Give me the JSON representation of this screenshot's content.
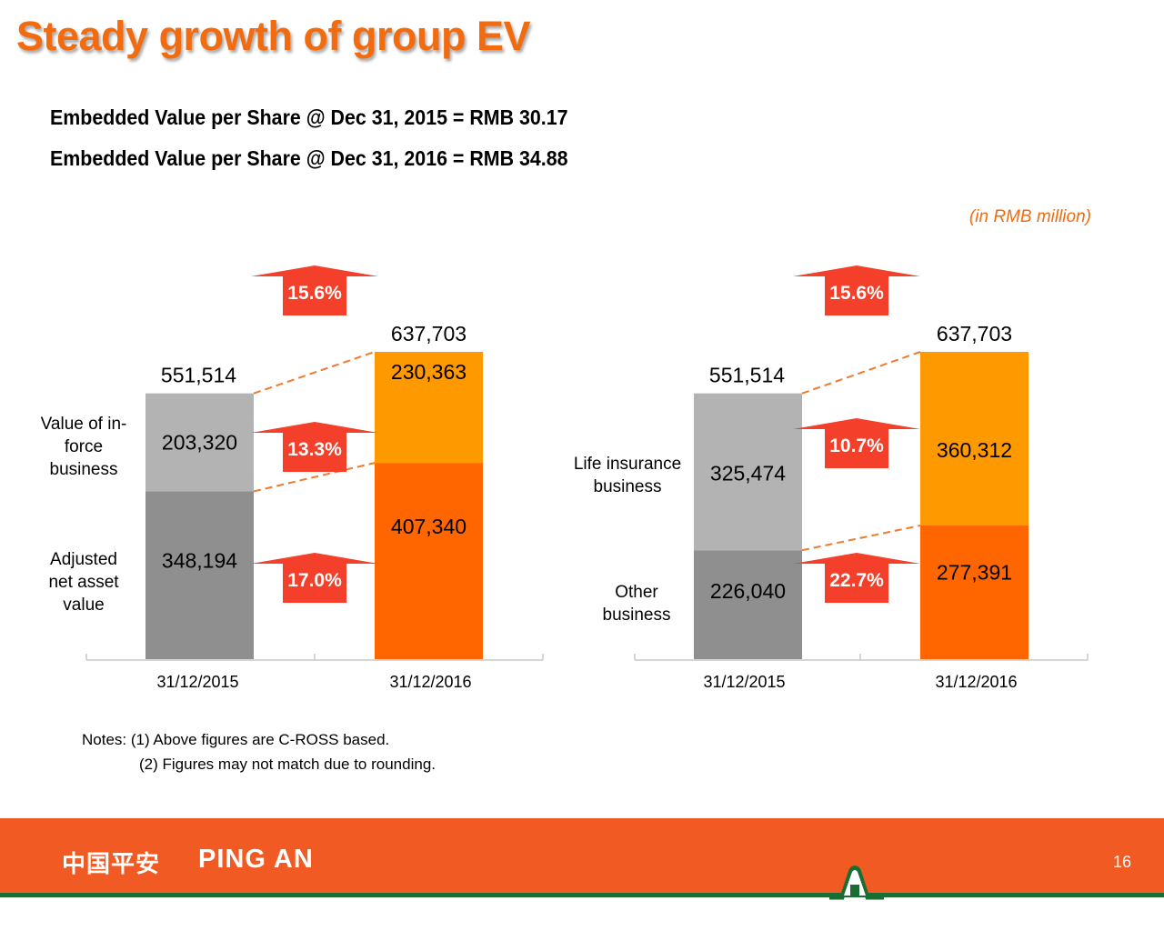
{
  "slide": {
    "title": "Steady growth of group EV",
    "ev_per_share_2015": "Embedded Value per Share @ Dec 31, 2015 = RMB 30.17",
    "ev_per_share_2016": "Embedded Value per Share @ Dec 31, 2016 = RMB 34.88",
    "unit_note": "(in RMB million)",
    "notes": [
      "Notes: (1) Above figures are C-ROSS based.",
      "(2) Figures may not match due to rounding."
    ],
    "page_number": "16"
  },
  "footer": {
    "logo_cn": "中国平安",
    "logo_en": "PING AN"
  },
  "colors": {
    "title_orange": "#f26b0f",
    "bar_2015_top": "#b3b3b3",
    "bar_2015_bottom": "#8f8f8f",
    "bar_2016_top": "#ff9900",
    "bar_2016_bottom": "#ff6600",
    "growth_arrow": "#f4402a",
    "connector": "#f07a2e",
    "footer_bg": "#f15a22",
    "footer_line": "#1a6e34"
  },
  "chart_data": [
    {
      "type": "bar",
      "stacked": true,
      "title": "EV by component",
      "categories": [
        "31/12/2015",
        "31/12/2016"
      ],
      "series": [
        {
          "name": "Adjusted net asset value",
          "values": [
            348194,
            407340
          ]
        },
        {
          "name": "Value of in-force business",
          "values": [
            203320,
            230363
          ]
        }
      ],
      "totals": [
        551514,
        637703
      ],
      "growth": {
        "total": "15.6%",
        "Value of in-force business": "13.3%",
        "Adjusted net asset value": "17.0%"
      },
      "series_labels": [
        {
          "name": "Adjusted net asset value",
          "text": "Adjusted net asset value",
          "lines": [
            "Adjusted",
            "net asset",
            "value"
          ]
        },
        {
          "name": "Value of in-force business",
          "text": "Value of in-force business",
          "lines": [
            "Value of in-",
            "force",
            "business"
          ]
        }
      ],
      "ylim": [
        0,
        700000
      ],
      "grid": false,
      "xlabel": "",
      "ylabel": ""
    },
    {
      "type": "bar",
      "stacked": true,
      "title": "EV by business",
      "categories": [
        "31/12/2015",
        "31/12/2016"
      ],
      "series": [
        {
          "name": "Other business",
          "values": [
            226040,
            277391
          ]
        },
        {
          "name": "Life insurance business",
          "values": [
            325474,
            360312
          ]
        }
      ],
      "totals": [
        551514,
        637703
      ],
      "growth": {
        "total": "15.6%",
        "Life insurance business": "10.7%",
        "Other business": "22.7%"
      },
      "series_labels": [
        {
          "name": "Other business",
          "text": "Other business",
          "lines": [
            "Other",
            "business"
          ]
        },
        {
          "name": "Life insurance business",
          "text": "Life insurance business",
          "lines": [
            "Life insurance",
            "business"
          ]
        }
      ],
      "ylim": [
        0,
        700000
      ],
      "grid": false,
      "xlabel": "",
      "ylabel": ""
    }
  ]
}
